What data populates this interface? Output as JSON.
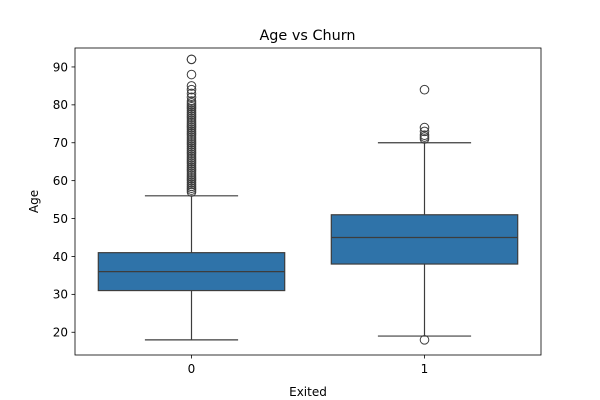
{
  "chart_data": {
    "type": "box",
    "title": "Age vs Churn",
    "xlabel": "Exited",
    "ylabel": "Age",
    "categories": [
      "0",
      "1"
    ],
    "ylim": [
      14,
      95
    ],
    "yticks": [
      20,
      30,
      40,
      50,
      60,
      70,
      80,
      90
    ],
    "grid": false,
    "color": "#2f73a9",
    "boxes": [
      {
        "category": "0",
        "whisker_low": 18,
        "q1": 31,
        "median": 36,
        "q3": 41,
        "whisker_high": 56,
        "outliers": [
          57,
          57.5,
          58,
          58.5,
          59,
          59.5,
          60,
          60.5,
          61,
          61.5,
          62,
          62.5,
          63,
          63.5,
          64,
          64.5,
          65,
          65.5,
          66,
          66.5,
          67,
          67.5,
          68,
          68.5,
          69,
          69.5,
          70,
          70.5,
          71,
          71.5,
          72,
          72.5,
          73,
          73.5,
          74,
          74.5,
          75,
          75.5,
          76,
          76.5,
          77,
          77.5,
          78,
          78.5,
          79,
          79.5,
          80,
          80.5,
          81,
          82,
          83,
          84,
          85,
          88,
          92,
          92
        ]
      },
      {
        "category": "1",
        "whisker_low": 19,
        "q1": 38,
        "median": 45,
        "q3": 51,
        "whisker_high": 70,
        "outliers": [
          18,
          71,
          71.5,
          72,
          73,
          74,
          84
        ]
      }
    ]
  }
}
